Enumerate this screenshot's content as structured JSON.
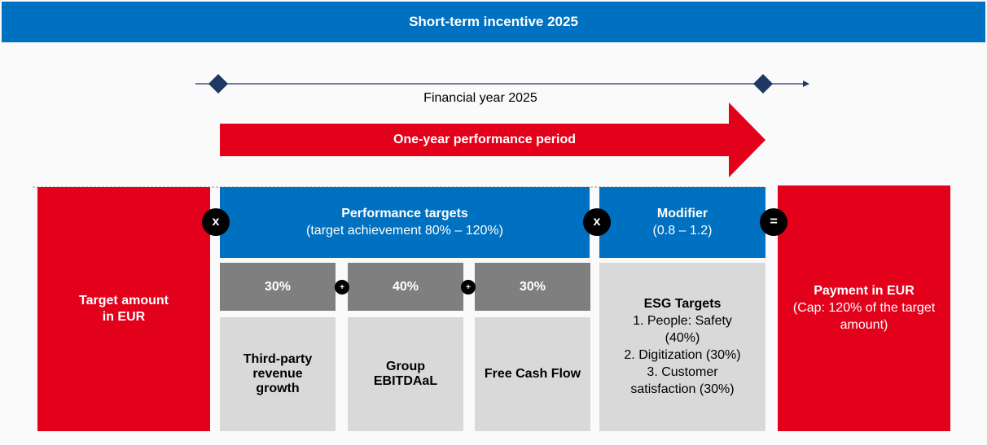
{
  "header": {
    "title": "Short-term incentive 2025"
  },
  "timeline": {
    "label": "Financial year 2025"
  },
  "period": {
    "label": "One-year performance period"
  },
  "target": {
    "label": "Target amount in EUR"
  },
  "operators": {
    "multiply_1": "x",
    "multiply_2": "x",
    "equals": "=",
    "plus_1": "+",
    "plus_2": "+"
  },
  "performance": {
    "title": "Performance targets",
    "subtitle": "(target achievement 80% – 120%)",
    "components": [
      {
        "weight": "30%",
        "label": "Third-party revenue growth"
      },
      {
        "weight": "40%",
        "label": "Group EBITDAaL"
      },
      {
        "weight": "30%",
        "label": "Free Cash Flow"
      }
    ]
  },
  "modifier": {
    "title": "Modifier",
    "subtitle": "(0.8 – 1.2)"
  },
  "esg": {
    "title": "ESG Targets",
    "items": [
      "1. People: Safety (40%)",
      "2. Digitization (30%)",
      "3. Customer satisfaction (30%)"
    ]
  },
  "payment": {
    "title": "Payment in EUR",
    "subtitle": "(Cap: 120% of the target amount)"
  }
}
